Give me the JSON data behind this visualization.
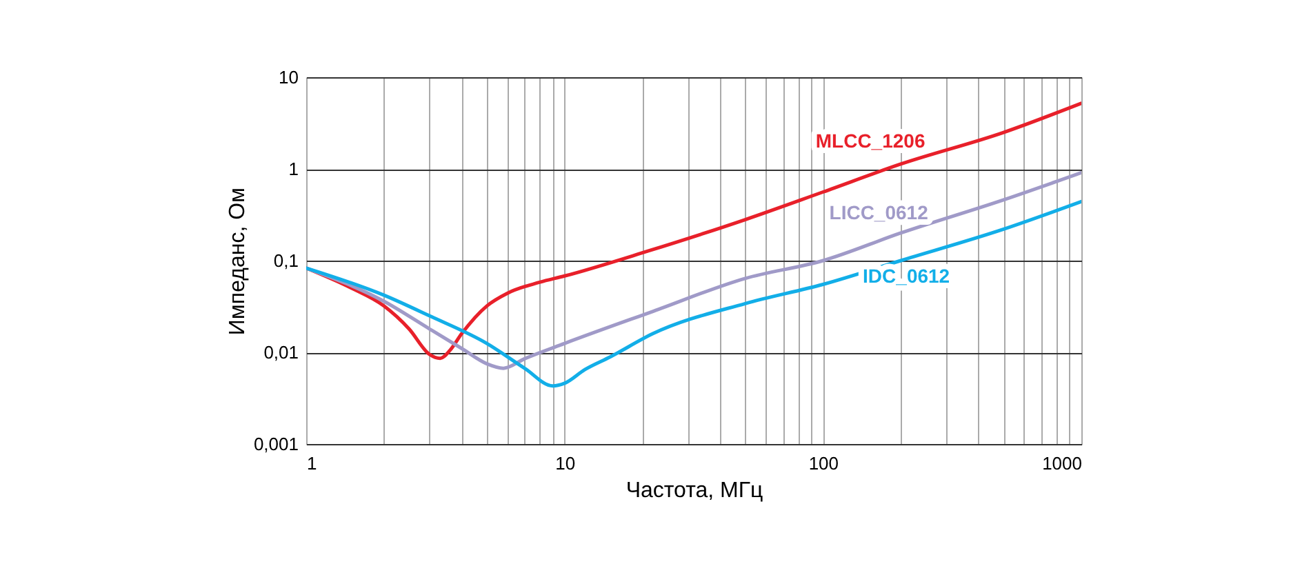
{
  "chart_data": {
    "type": "line",
    "xlabel": "Частота, МГц",
    "ylabel": "Импеданс, Ом",
    "log": "xy",
    "grid": true,
    "legend": false,
    "line_style": "solid",
    "marker": "none",
    "xlim": [
      1,
      1000
    ],
    "ylim": [
      0.001,
      10
    ],
    "xticks": [
      1,
      {
        "value": 2,
        "label": null
      },
      {
        "value": 3,
        "label": null
      },
      {
        "value": 4,
        "label": null
      },
      {
        "value": 5,
        "label": null
      },
      {
        "value": 6,
        "label": null
      },
      {
        "value": 7,
        "label": null
      },
      {
        "value": 8,
        "label": null
      },
      {
        "value": 9,
        "label": null
      },
      10,
      {
        "value": 20,
        "label": null
      },
      {
        "value": 30,
        "label": null
      },
      {
        "value": 40,
        "label": null
      },
      {
        "value": 50,
        "label": null
      },
      {
        "value": 60,
        "label": null
      },
      {
        "value": 70,
        "label": null
      },
      {
        "value": 80,
        "label": null
      },
      {
        "value": 90,
        "label": null
      },
      100,
      {
        "value": 200,
        "label": null
      },
      {
        "value": 300,
        "label": null
      },
      {
        "value": 400,
        "label": null
      },
      {
        "value": 500,
        "label": null
      },
      {
        "value": 600,
        "label": null
      },
      {
        "value": 700,
        "label": null
      },
      {
        "value": 800,
        "label": null
      },
      {
        "value": 900,
        "label": null
      },
      1000
    ],
    "yticks": [
      {
        "value": 0.001,
        "label": "0,001"
      },
      {
        "value": 0.01,
        "label": "0,01"
      },
      {
        "value": 0.1,
        "label": "0,1"
      },
      1,
      10
    ],
    "series": [
      {
        "name": "MLCC_1206",
        "color": "#e8202a",
        "x": [
          1,
          1.5,
          2,
          2.5,
          3,
          3.3,
          3.6,
          4,
          5,
          6,
          8,
          10,
          21,
          50,
          100,
          200,
          500,
          1000
        ],
        "values": [
          0.083,
          0.05,
          0.032,
          0.018,
          0.0095,
          0.0086,
          0.0105,
          0.016,
          0.032,
          0.044,
          0.058,
          0.068,
          0.127,
          0.28,
          0.56,
          1.13,
          2.5,
          5.2
        ]
      },
      {
        "name": "LICC_0612",
        "color": "#a09ac8",
        "x": [
          1,
          2,
          3,
          4,
          5,
          5.8,
          7,
          10,
          22,
          50,
          100,
          200,
          500,
          1000
        ],
        "values": [
          0.083,
          0.036,
          0.018,
          0.011,
          0.0075,
          0.0067,
          0.0085,
          0.0125,
          0.028,
          0.064,
          0.1,
          0.2,
          0.46,
          0.91
        ]
      },
      {
        "name": "IDC_0612",
        "color": "#12aee8",
        "x": [
          1,
          2,
          3,
          5,
          7,
          9,
          10,
          12,
          15,
          22,
          50,
          100,
          200,
          500,
          1000
        ],
        "values": [
          0.083,
          0.042,
          0.025,
          0.0125,
          0.0067,
          0.0043,
          0.0046,
          0.0065,
          0.0089,
          0.016,
          0.034,
          0.055,
          0.1,
          0.22,
          0.44
        ]
      }
    ]
  }
}
